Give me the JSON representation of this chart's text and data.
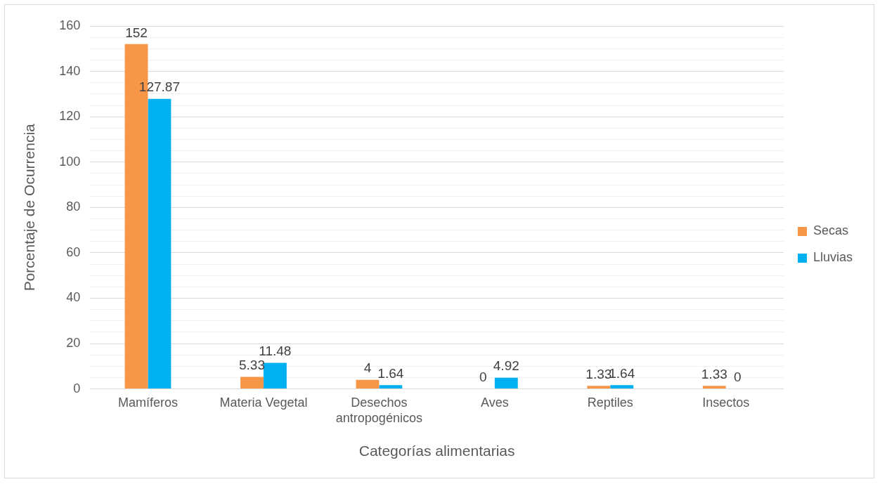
{
  "chart_data": {
    "type": "bar",
    "xlabel": "Categorías alimentarias",
    "ylabel": "Porcentaje de Ocurrencia",
    "categories": [
      "Mamíferos",
      "Materia Vegetal",
      "Desechos antropogénicos",
      "Aves",
      "Reptiles",
      "Insectos"
    ],
    "series": [
      {
        "name": "Secas",
        "color": "#f79646",
        "values": [
          152,
          5.33,
          4,
          0,
          1.33,
          1.33
        ]
      },
      {
        "name": "Lluvias",
        "color": "#00b0f0",
        "values": [
          127.87,
          11.48,
          1.64,
          4.92,
          1.64,
          0
        ]
      }
    ],
    "ylim": [
      0,
      160
    ],
    "yticks": [
      0,
      {
        "value": 5,
        "label": null
      },
      {
        "value": 10,
        "label": null
      },
      {
        "value": 15,
        "label": null
      },
      20,
      {
        "value": 25,
        "label": null
      },
      {
        "value": 30,
        "label": null
      },
      {
        "value": 35,
        "label": null
      },
      40,
      {
        "value": 45,
        "label": null
      },
      {
        "value": 50,
        "label": null
      },
      {
        "value": 55,
        "label": null
      },
      60,
      {
        "value": 65,
        "label": null
      },
      {
        "value": 70,
        "label": null
      },
      {
        "value": 75,
        "label": null
      },
      80,
      {
        "value": 85,
        "label": null
      },
      {
        "value": 90,
        "label": null
      },
      {
        "value": 95,
        "label": null
      },
      100,
      {
        "value": 105,
        "label": null
      },
      {
        "value": 110,
        "label": null
      },
      {
        "value": 115,
        "label": null
      },
      120,
      {
        "value": 125,
        "label": null
      },
      {
        "value": 130,
        "label": null
      },
      {
        "value": 135,
        "label": null
      },
      140,
      {
        "value": 145,
        "label": null
      },
      {
        "value": 150,
        "label": null
      },
      {
        "value": 155,
        "label": null
      },
      160
    ],
    "grid": "y",
    "legend": "right",
    "data_labels": true
  }
}
